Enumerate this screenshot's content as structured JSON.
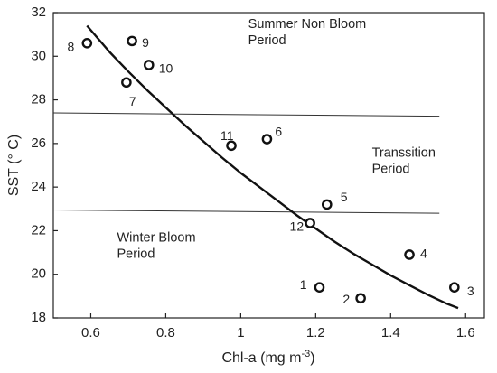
{
  "chart_data": {
    "type": "scatter",
    "xlabel": "Chl-a (mg m",
    "xlabel_sup": "-3",
    "xlabel_close": ")",
    "ylabel": "SST (° C)",
    "xlim": [
      0.5,
      1.65
    ],
    "ylim": [
      18,
      32
    ],
    "xticks": [
      0.6,
      0.8,
      1.0,
      1.2,
      1.4,
      1.6
    ],
    "xtick_labels": [
      "0.6",
      "0.8",
      "1",
      "1.2",
      "1.4",
      "1.6"
    ],
    "yticks": [
      18,
      20,
      22,
      24,
      26,
      28,
      30,
      32
    ],
    "ytick_labels": [
      "18",
      "20",
      "22",
      "24",
      "26",
      "28",
      "30",
      "32"
    ],
    "grid": false,
    "points": [
      {
        "label": "1",
        "x": 1.21,
        "y": 19.4
      },
      {
        "label": "2",
        "x": 1.32,
        "y": 18.9
      },
      {
        "label": "3",
        "x": 1.57,
        "y": 19.4
      },
      {
        "label": "4",
        "x": 1.45,
        "y": 20.9
      },
      {
        "label": "5",
        "x": 1.23,
        "y": 23.2
      },
      {
        "label": "6",
        "x": 1.07,
        "y": 26.2
      },
      {
        "label": "7",
        "x": 0.695,
        "y": 28.8
      },
      {
        "label": "8",
        "x": 0.59,
        "y": 30.6
      },
      {
        "label": "9",
        "x": 0.71,
        "y": 30.7
      },
      {
        "label": "10",
        "x": 0.755,
        "y": 29.6
      },
      {
        "label": "11",
        "x": 0.975,
        "y": 25.9
      },
      {
        "label": "12",
        "x": 1.185,
        "y": 22.35
      }
    ],
    "fit_curve": {
      "x": [
        0.59,
        0.65,
        0.7,
        0.75,
        0.8,
        0.85,
        0.9,
        0.95,
        1.0,
        1.05,
        1.1,
        1.15,
        1.2,
        1.25,
        1.3,
        1.35,
        1.4,
        1.45,
        1.5,
        1.55,
        1.58
      ],
      "y": [
        31.4,
        30.2,
        29.3,
        28.45,
        27.65,
        26.85,
        26.1,
        25.35,
        24.65,
        24.0,
        23.35,
        22.7,
        22.1,
        21.5,
        20.95,
        20.45,
        19.95,
        19.5,
        19.05,
        18.65,
        18.45
      ]
    },
    "reference_lines": [
      {
        "x": [
          0.5,
          1.53
        ],
        "y": [
          27.4,
          27.25
        ]
      },
      {
        "x": [
          0.5,
          1.53
        ],
        "y": [
          22.95,
          22.8
        ]
      }
    ],
    "annotations": [
      {
        "lines": [
          "Summer Non Bloom",
          "Period"
        ],
        "x": 1.02,
        "y": 31.3
      },
      {
        "lines": [
          "Transsition",
          "Period"
        ],
        "x": 1.35,
        "y": 25.4
      },
      {
        "lines": [
          "Winter Bloom",
          "Period"
        ],
        "x": 0.67,
        "y": 21.5
      }
    ]
  }
}
